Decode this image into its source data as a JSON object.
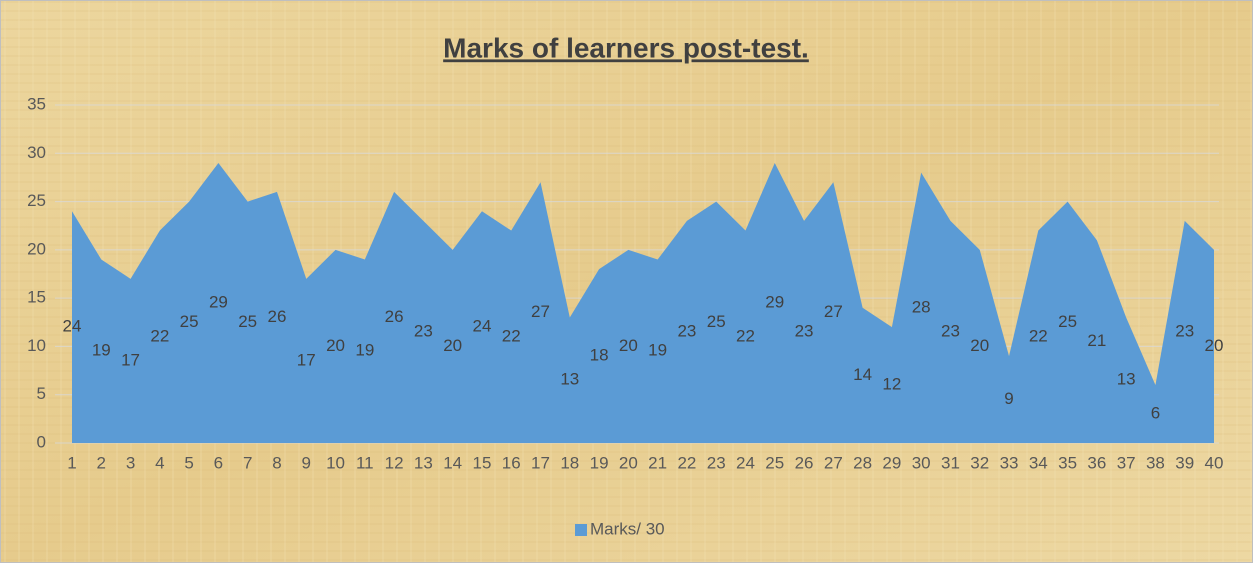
{
  "chart_data": {
    "type": "area",
    "title": "Marks of learners post-test.",
    "categories": [
      "1",
      "2",
      "3",
      "4",
      "5",
      "6",
      "7",
      "8",
      "9",
      "10",
      "11",
      "12",
      "13",
      "14",
      "15",
      "16",
      "17",
      "18",
      "19",
      "20",
      "21",
      "22",
      "23",
      "24",
      "25",
      "26",
      "27",
      "28",
      "29",
      "30",
      "31",
      "32",
      "33",
      "34",
      "35",
      "36",
      "37",
      "38",
      "39",
      "40"
    ],
    "series": [
      {
        "name": "Marks/ 30",
        "color": "#5b9bd5",
        "values": [
          24,
          19,
          17,
          22,
          25,
          29,
          25,
          26,
          17,
          20,
          19,
          26,
          23,
          20,
          24,
          22,
          27,
          13,
          18,
          20,
          19,
          23,
          25,
          22,
          29,
          23,
          27,
          14,
          12,
          28,
          23,
          20,
          9,
          22,
          25,
          21,
          13,
          6,
          23,
          20
        ]
      }
    ],
    "ylim": [
      0,
      35
    ],
    "yticks": [
      0,
      5,
      10,
      15,
      20,
      25,
      30,
      35
    ],
    "grid": true,
    "legend": "bottom"
  }
}
